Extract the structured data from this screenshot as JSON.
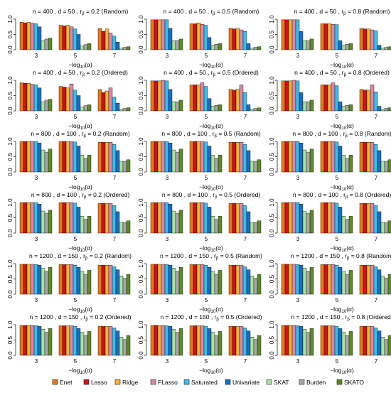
{
  "chart_data": {
    "type": "bar",
    "layout": "6 rows x 3 columns of grouped bar charts",
    "categories": [
      "3",
      "5",
      "7"
    ],
    "xlabel_prefix": "−log",
    "xlabel_sub": "10",
    "xlabel_suffix": "(α)",
    "ylim": [
      0,
      1.0
    ],
    "yticks": [
      "0.0",
      "0.5",
      "1.0"
    ],
    "grid": false,
    "legend_position": "bottom",
    "methods": [
      {
        "name": "Enet",
        "color": "#E8781E"
      },
      {
        "name": "Lasso",
        "color": "#CC1414"
      },
      {
        "name": "Ridge",
        "color": "#F2B23C"
      },
      {
        "name": "FLasso",
        "color": "#D889A6"
      },
      {
        "name": "Saturated",
        "color": "#3DBCEB"
      },
      {
        "name": "Univariate",
        "color": "#1A6FC0"
      },
      {
        "name": "SKAT",
        "color": "#A9E2A0"
      },
      {
        "name": "Burden",
        "color": "#A8A8A8"
      },
      {
        "name": "SKATO",
        "color": "#5E8A2A"
      }
    ],
    "panels": [
      {
        "n": "1200",
        "d": "150",
        "r": "0.2",
        "mode": "(Random)",
        "values": [
          [
            0.98,
            0.98,
            0.98,
            0.98,
            0.97,
            0.95,
            0.85,
            0.75,
            0.88
          ],
          [
            0.97,
            0.97,
            0.97,
            0.97,
            0.95,
            0.88,
            0.75,
            0.65,
            0.78
          ],
          [
            0.95,
            0.95,
            0.95,
            0.95,
            0.9,
            0.8,
            0.6,
            0.52,
            0.65
          ]
        ]
      },
      {
        "n": "1200",
        "d": "150",
        "r": "0.5",
        "mode": "(Random)",
        "values": [
          [
            0.98,
            0.98,
            0.98,
            0.98,
            0.97,
            0.95,
            0.85,
            0.75,
            0.88
          ],
          [
            0.97,
            0.97,
            0.97,
            0.97,
            0.95,
            0.88,
            0.75,
            0.65,
            0.78
          ],
          [
            0.95,
            0.95,
            0.95,
            0.95,
            0.9,
            0.8,
            0.6,
            0.52,
            0.65
          ]
        ]
      },
      {
        "n": "1200",
        "d": "150",
        "r": "0.8",
        "mode": "(Random)",
        "values": [
          [
            0.98,
            0.98,
            0.98,
            0.98,
            0.97,
            0.95,
            0.85,
            0.75,
            0.88
          ],
          [
            0.97,
            0.97,
            0.97,
            0.97,
            0.95,
            0.88,
            0.75,
            0.65,
            0.78
          ],
          [
            0.95,
            0.95,
            0.95,
            0.95,
            0.9,
            0.8,
            0.6,
            0.52,
            0.65
          ]
        ]
      },
      {
        "n": "1200",
        "d": "150",
        "r": "0.2",
        "mode": "(Ordered)",
        "values": [
          [
            0.98,
            0.98,
            0.98,
            0.98,
            0.97,
            0.95,
            0.85,
            0.75,
            0.88
          ],
          [
            0.97,
            0.97,
            0.97,
            0.97,
            0.95,
            0.88,
            0.75,
            0.65,
            0.78
          ],
          [
            0.95,
            0.95,
            0.95,
            0.95,
            0.9,
            0.8,
            0.6,
            0.52,
            0.65
          ]
        ]
      },
      {
        "n": "1200",
        "d": "150",
        "r": "0.5",
        "mode": "(Ordered)",
        "values": [
          [
            0.98,
            0.98,
            0.98,
            0.98,
            0.97,
            0.95,
            0.85,
            0.75,
            0.88
          ],
          [
            0.97,
            0.97,
            0.97,
            0.97,
            0.95,
            0.88,
            0.75,
            0.65,
            0.78
          ],
          [
            0.95,
            0.95,
            0.95,
            0.95,
            0.9,
            0.8,
            0.6,
            0.52,
            0.65
          ]
        ]
      },
      {
        "n": "1200",
        "d": "150",
        "r": "0.8",
        "mode": "(Ordered)",
        "values": [
          [
            0.98,
            0.98,
            0.98,
            0.98,
            0.97,
            0.95,
            0.85,
            0.75,
            0.88
          ],
          [
            0.97,
            0.97,
            0.97,
            0.97,
            0.95,
            0.88,
            0.75,
            0.65,
            0.78
          ],
          [
            0.95,
            0.95,
            0.95,
            0.95,
            0.9,
            0.8,
            0.6,
            0.52,
            0.65
          ]
        ]
      },
      {
        "n": "400",
        "d": "50",
        "r": "0.2",
        "mode": "(Random)",
        "values": [
          [
            0.9,
            0.88,
            0.9,
            0.87,
            0.85,
            0.75,
            0.3,
            0.35,
            0.38
          ],
          [
            0.8,
            0.78,
            0.8,
            0.75,
            0.68,
            0.5,
            0.12,
            0.17,
            0.2
          ],
          [
            0.7,
            0.6,
            0.68,
            0.55,
            0.45,
            0.25,
            0.05,
            0.08,
            0.1
          ]
        ]
      },
      {
        "n": "400",
        "d": "50",
        "r": "0.5",
        "mode": "(Random)",
        "values": [
          [
            0.98,
            0.98,
            0.98,
            0.98,
            0.98,
            0.7,
            0.3,
            0.3,
            0.35
          ],
          [
            0.85,
            0.85,
            0.88,
            0.83,
            0.8,
            0.4,
            0.15,
            0.18,
            0.2
          ],
          [
            0.7,
            0.68,
            0.7,
            0.65,
            0.6,
            0.2,
            0.05,
            0.08,
            0.1
          ]
        ]
      },
      {
        "n": "400",
        "d": "50",
        "r": "0.8",
        "mode": "(Random)",
        "values": [
          [
            0.98,
            0.98,
            0.98,
            0.98,
            0.98,
            0.6,
            0.3,
            0.3,
            0.35
          ],
          [
            0.85,
            0.85,
            0.85,
            0.83,
            0.82,
            0.3,
            0.15,
            0.18,
            0.2
          ],
          [
            0.7,
            0.68,
            0.68,
            0.65,
            0.62,
            0.15,
            0.05,
            0.08,
            0.1
          ]
        ]
      },
      {
        "n": "400",
        "d": "50",
        "r": "0.2",
        "mode": "(Ordered)",
        "values": [
          [
            0.92,
            0.9,
            0.9,
            0.87,
            0.85,
            0.75,
            0.3,
            0.35,
            0.38
          ],
          [
            0.8,
            0.78,
            0.75,
            0.88,
            0.68,
            0.5,
            0.12,
            0.17,
            0.2
          ],
          [
            0.7,
            0.6,
            0.65,
            0.75,
            0.45,
            0.25,
            0.05,
            0.08,
            0.1
          ]
        ]
      },
      {
        "n": "400",
        "d": "50",
        "r": "0.5",
        "mode": "(Ordered)",
        "values": [
          [
            0.98,
            0.98,
            0.98,
            1.0,
            0.98,
            0.7,
            0.3,
            0.3,
            0.35
          ],
          [
            0.85,
            0.85,
            0.85,
            0.92,
            0.8,
            0.4,
            0.15,
            0.18,
            0.2
          ],
          [
            0.7,
            0.68,
            0.7,
            0.85,
            0.6,
            0.2,
            0.05,
            0.08,
            0.1
          ]
        ]
      },
      {
        "n": "400",
        "d": "50",
        "r": "0.8",
        "mode": "(Ordered)",
        "values": [
          [
            0.98,
            0.98,
            0.98,
            1.0,
            0.98,
            0.6,
            0.3,
            0.3,
            0.35
          ],
          [
            0.85,
            0.85,
            0.85,
            0.92,
            0.82,
            0.3,
            0.15,
            0.18,
            0.2
          ],
          [
            0.7,
            0.68,
            0.68,
            0.85,
            0.62,
            0.15,
            0.05,
            0.08,
            0.1
          ]
        ]
      },
      {
        "n": "800",
        "d": "100",
        "r": "0.2",
        "mode": "(Random)",
        "values": [
          [
            1.0,
            1.0,
            1.0,
            1.0,
            1.0,
            0.95,
            0.72,
            0.65,
            0.75
          ],
          [
            1.0,
            1.0,
            1.0,
            1.0,
            0.98,
            0.85,
            0.55,
            0.45,
            0.55
          ],
          [
            0.97,
            0.97,
            0.97,
            0.97,
            0.9,
            0.7,
            0.35,
            0.35,
            0.4
          ]
        ]
      },
      {
        "n": "800",
        "d": "100",
        "r": "0.5",
        "mode": "(Random)",
        "values": [
          [
            1.0,
            1.0,
            1.0,
            1.0,
            1.0,
            0.95,
            0.72,
            0.65,
            0.75
          ],
          [
            1.0,
            1.0,
            1.0,
            1.0,
            0.98,
            0.85,
            0.55,
            0.45,
            0.55
          ],
          [
            0.97,
            0.97,
            0.97,
            0.97,
            0.9,
            0.7,
            0.35,
            0.35,
            0.4
          ]
        ]
      },
      {
        "n": "800",
        "d": "100",
        "r": "0.8",
        "mode": "(Random)",
        "values": [
          [
            1.0,
            1.0,
            1.0,
            1.0,
            1.0,
            0.95,
            0.72,
            0.65,
            0.75
          ],
          [
            1.0,
            1.0,
            1.0,
            1.0,
            0.98,
            0.85,
            0.55,
            0.45,
            0.55
          ],
          [
            0.97,
            0.97,
            0.97,
            0.97,
            0.9,
            0.7,
            0.35,
            0.35,
            0.4
          ]
        ]
      },
      {
        "n": "800",
        "d": "100",
        "r": "0.2",
        "mode": "(Ordered)",
        "values": [
          [
            1.0,
            1.0,
            1.0,
            1.0,
            1.0,
            0.95,
            0.72,
            0.65,
            0.75
          ],
          [
            1.0,
            1.0,
            1.0,
            1.0,
            0.98,
            0.85,
            0.55,
            0.45,
            0.55
          ],
          [
            0.97,
            0.97,
            0.97,
            0.97,
            0.9,
            0.7,
            0.35,
            0.35,
            0.4
          ]
        ]
      },
      {
        "n": "800",
        "d": "100",
        "r": "0.5",
        "mode": "(Ordered)",
        "values": [
          [
            1.0,
            1.0,
            1.0,
            1.0,
            1.0,
            0.95,
            0.72,
            0.65,
            0.75
          ],
          [
            1.0,
            1.0,
            1.0,
            1.0,
            0.98,
            0.85,
            0.55,
            0.45,
            0.55
          ],
          [
            0.97,
            0.97,
            0.97,
            0.97,
            0.9,
            0.7,
            0.35,
            0.35,
            0.4
          ]
        ]
      },
      {
        "n": "800",
        "d": "100",
        "r": "0.8",
        "mode": "(Ordered)",
        "values": [
          [
            1.0,
            1.0,
            1.0,
            1.0,
            1.0,
            0.95,
            0.72,
            0.65,
            0.75
          ],
          [
            1.0,
            1.0,
            1.0,
            1.0,
            0.98,
            0.85,
            0.55,
            0.45,
            0.55
          ],
          [
            0.97,
            0.97,
            0.97,
            0.97,
            0.9,
            0.7,
            0.35,
            0.35,
            0.4
          ]
        ]
      }
    ]
  }
}
